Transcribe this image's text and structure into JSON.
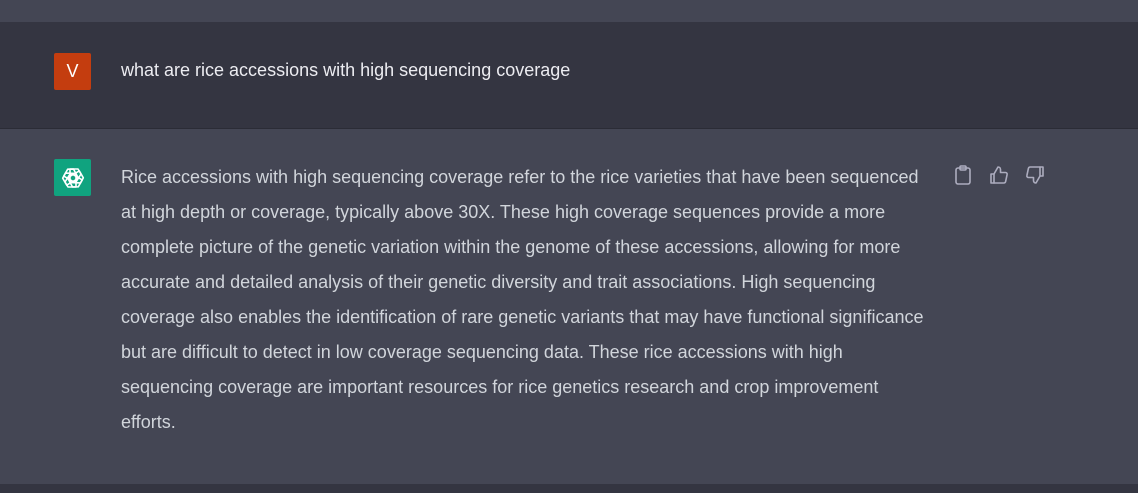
{
  "conversation": {
    "user_message": {
      "avatar_letter": "V",
      "avatar_color": "#c43d0f",
      "text": "what are rice accessions with high sequencing coverage"
    },
    "assistant_message": {
      "avatar_icon": "openai-logo-icon",
      "avatar_color": "#10a37f",
      "text": "Rice accessions with high sequencing coverage refer to the rice varieties that have been sequenced at high depth or coverage, typically above 30X. These high coverage sequences provide a more complete picture of the genetic variation within the genome of these accessions, allowing for more accurate and detailed analysis of their genetic diversity and trait associations. High sequencing coverage also enables the identification of rare genetic variants that may have functional significance but are difficult to detect in low coverage sequencing data. These rice accessions with high sequencing coverage are important resources for rice genetics research and crop improvement efforts.",
      "actions": [
        {
          "icon": "clipboard-icon"
        },
        {
          "icon": "thumbs-up-icon"
        },
        {
          "icon": "thumbs-down-icon"
        }
      ]
    }
  }
}
